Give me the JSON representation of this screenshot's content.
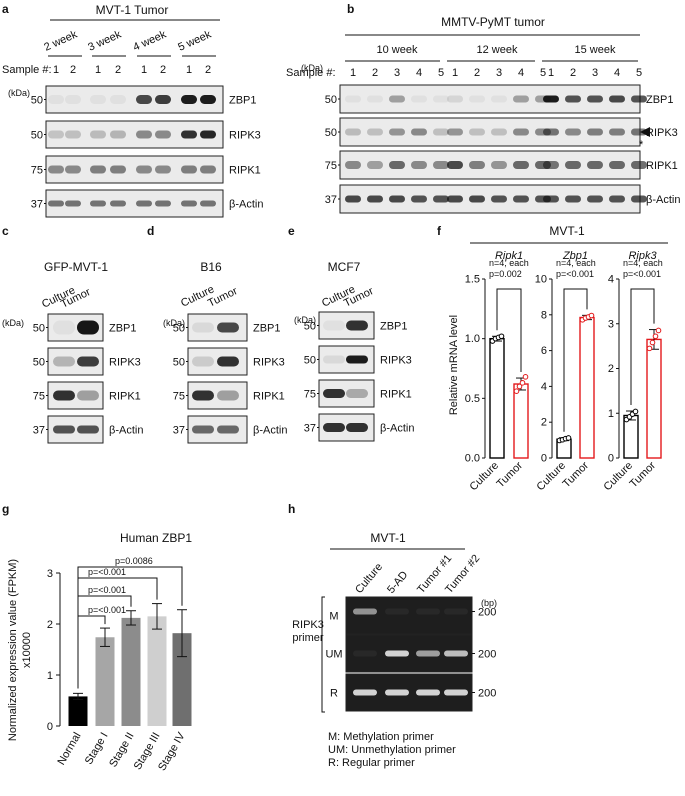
{
  "panels": {
    "a": {
      "letter": "a",
      "title": "MVT-1 Tumor",
      "groups": [
        "2 week",
        "3 week",
        "4 week",
        "5 week"
      ],
      "sample_label": "Sample #:",
      "samples": [
        "1",
        "2",
        "1",
        "2",
        "1",
        "2",
        "1",
        "2"
      ],
      "kda": "(kDa)",
      "markers": [
        "50",
        "50",
        "75",
        "37"
      ],
      "proteins": [
        "ZBP1",
        "RIPK3",
        "RIPK1",
        "β-Actin"
      ]
    },
    "b": {
      "letter": "b",
      "title": "MMTV-PyMT tumor",
      "groups": [
        "10 week",
        "12 week",
        "15 week"
      ],
      "sample_label": "Sample #:",
      "samples": [
        "1",
        "2",
        "3",
        "4",
        "5",
        "1",
        "2",
        "3",
        "4",
        "5",
        "1",
        "2",
        "3",
        "4",
        "5"
      ],
      "kda": "(kDa)",
      "markers": [
        "50",
        "50",
        "75",
        "37"
      ],
      "proteins": [
        "ZBP1",
        "RIPK3",
        "RIPK1",
        "β-Actin"
      ],
      "star": "*"
    },
    "c": {
      "letter": "c",
      "title": "GFP-MVT-1",
      "lanes": [
        "Culture",
        "Tumor"
      ],
      "kda": "(kDa)",
      "markers": [
        "50",
        "50",
        "75",
        "37"
      ],
      "proteins": [
        "ZBP1",
        "RIPK3",
        "RIPK1",
        "β-Actin"
      ]
    },
    "d": {
      "letter": "d",
      "title": "B16",
      "lanes": [
        "Culture",
        "Tumor"
      ],
      "kda": "(kDa)",
      "markers": [
        "50",
        "50",
        "75",
        "37"
      ],
      "proteins": [
        "ZBP1",
        "RIPK3",
        "RIPK1",
        "β-Actin"
      ]
    },
    "e": {
      "letter": "e",
      "title": "MCF7",
      "lanes": [
        "Culture",
        "Tumor"
      ],
      "kda": "(kDa)",
      "markers": [
        "50",
        "50",
        "75",
        "37"
      ],
      "proteins": [
        "ZBP1",
        "RIPK3",
        "RIPK1",
        "β-Actin"
      ]
    },
    "f": {
      "letter": "f",
      "title": "MVT-1",
      "ylabel": "Relative mRNA level",
      "n_label": "n=4, each"
    },
    "g": {
      "letter": "g",
      "title": "Human ZBP1",
      "ylabel": "Normalized expression value (FPKM)",
      "multiplier": "x10000"
    },
    "h": {
      "letter": "h",
      "title": "MVT-1",
      "lanes": [
        "Culture",
        "5-AD",
        "Tumor #1",
        "Tumor #2"
      ],
      "rows": [
        "M",
        "UM",
        "R"
      ],
      "bp_unit": "(bp)",
      "bp": [
        "200",
        "200",
        "200"
      ],
      "primer_label": [
        "RIPK3",
        "primer"
      ],
      "legend": [
        "M: Methylation primer",
        "UM: Unmethylation primer",
        "R: Regular primer"
      ]
    }
  },
  "chart_data": [
    {
      "type": "bar",
      "panel": "f",
      "title": "Ripk1",
      "categories": [
        "Culture",
        "Tumor"
      ],
      "values": [
        1.0,
        0.62
      ],
      "errors": [
        0.02,
        0.05
      ],
      "points": [
        [
          0.98,
          1.0,
          1.01,
          1.02
        ],
        [
          0.56,
          0.6,
          0.63,
          0.68
        ]
      ],
      "pvalue": "p=0.002",
      "ylim": [
        0,
        1.5
      ],
      "yticks": [
        "0.0",
        "0.5",
        "1.0",
        "1.5"
      ],
      "colors": [
        "#000000",
        "#e31a1c"
      ]
    },
    {
      "type": "bar",
      "panel": "f",
      "title": "Zbp1",
      "categories": [
        "Culture",
        "Tumor"
      ],
      "values": [
        1.05,
        7.85
      ],
      "errors": [
        0.08,
        0.12
      ],
      "points": [
        [
          0.98,
          1.02,
          1.08,
          1.12
        ],
        [
          7.72,
          7.82,
          7.88,
          7.96
        ]
      ],
      "pvalue": "p=<0.001",
      "ylim": [
        0,
        10
      ],
      "yticks": [
        "0",
        "2",
        "4",
        "6",
        "8",
        "10"
      ],
      "colors": [
        "#000000",
        "#e31a1c"
      ]
    },
    {
      "type": "bar",
      "panel": "f",
      "title": "Ripk3",
      "categories": [
        "Culture",
        "Tumor"
      ],
      "values": [
        0.95,
        2.65
      ],
      "errors": [
        0.1,
        0.22
      ],
      "points": [
        [
          0.86,
          0.92,
          0.98,
          1.04
        ],
        [
          2.45,
          2.58,
          2.72,
          2.85
        ]
      ],
      "pvalue": "p=<0.001",
      "ylim": [
        0,
        4
      ],
      "yticks": [
        "0",
        "1",
        "2",
        "3",
        "4"
      ],
      "colors": [
        "#000000",
        "#e31a1c"
      ]
    },
    {
      "type": "bar",
      "panel": "g",
      "title": "Human ZBP1",
      "categories": [
        "Normal",
        "Stage I",
        "Stage II",
        "Stage III",
        "Stage IV"
      ],
      "values": [
        0.58,
        1.74,
        2.12,
        2.15,
        1.82
      ],
      "errors": [
        0.06,
        0.18,
        0.14,
        0.25,
        0.46
      ],
      "comparisons": [
        {
          "to": "Stage I",
          "p": "p=<0.001"
        },
        {
          "to": "Stage II",
          "p": "p=<0.001"
        },
        {
          "to": "Stage III",
          "p": "p=<0.001"
        },
        {
          "to": "Stage IV",
          "p": "p=0.0086"
        }
      ],
      "ylim": [
        0,
        3
      ],
      "yticks": [
        "0",
        "1",
        "2",
        "3"
      ],
      "colors": [
        "#000000",
        "#a6a6a6",
        "#8c8c8c",
        "#cfcfcf",
        "#6f6f6f"
      ]
    }
  ]
}
